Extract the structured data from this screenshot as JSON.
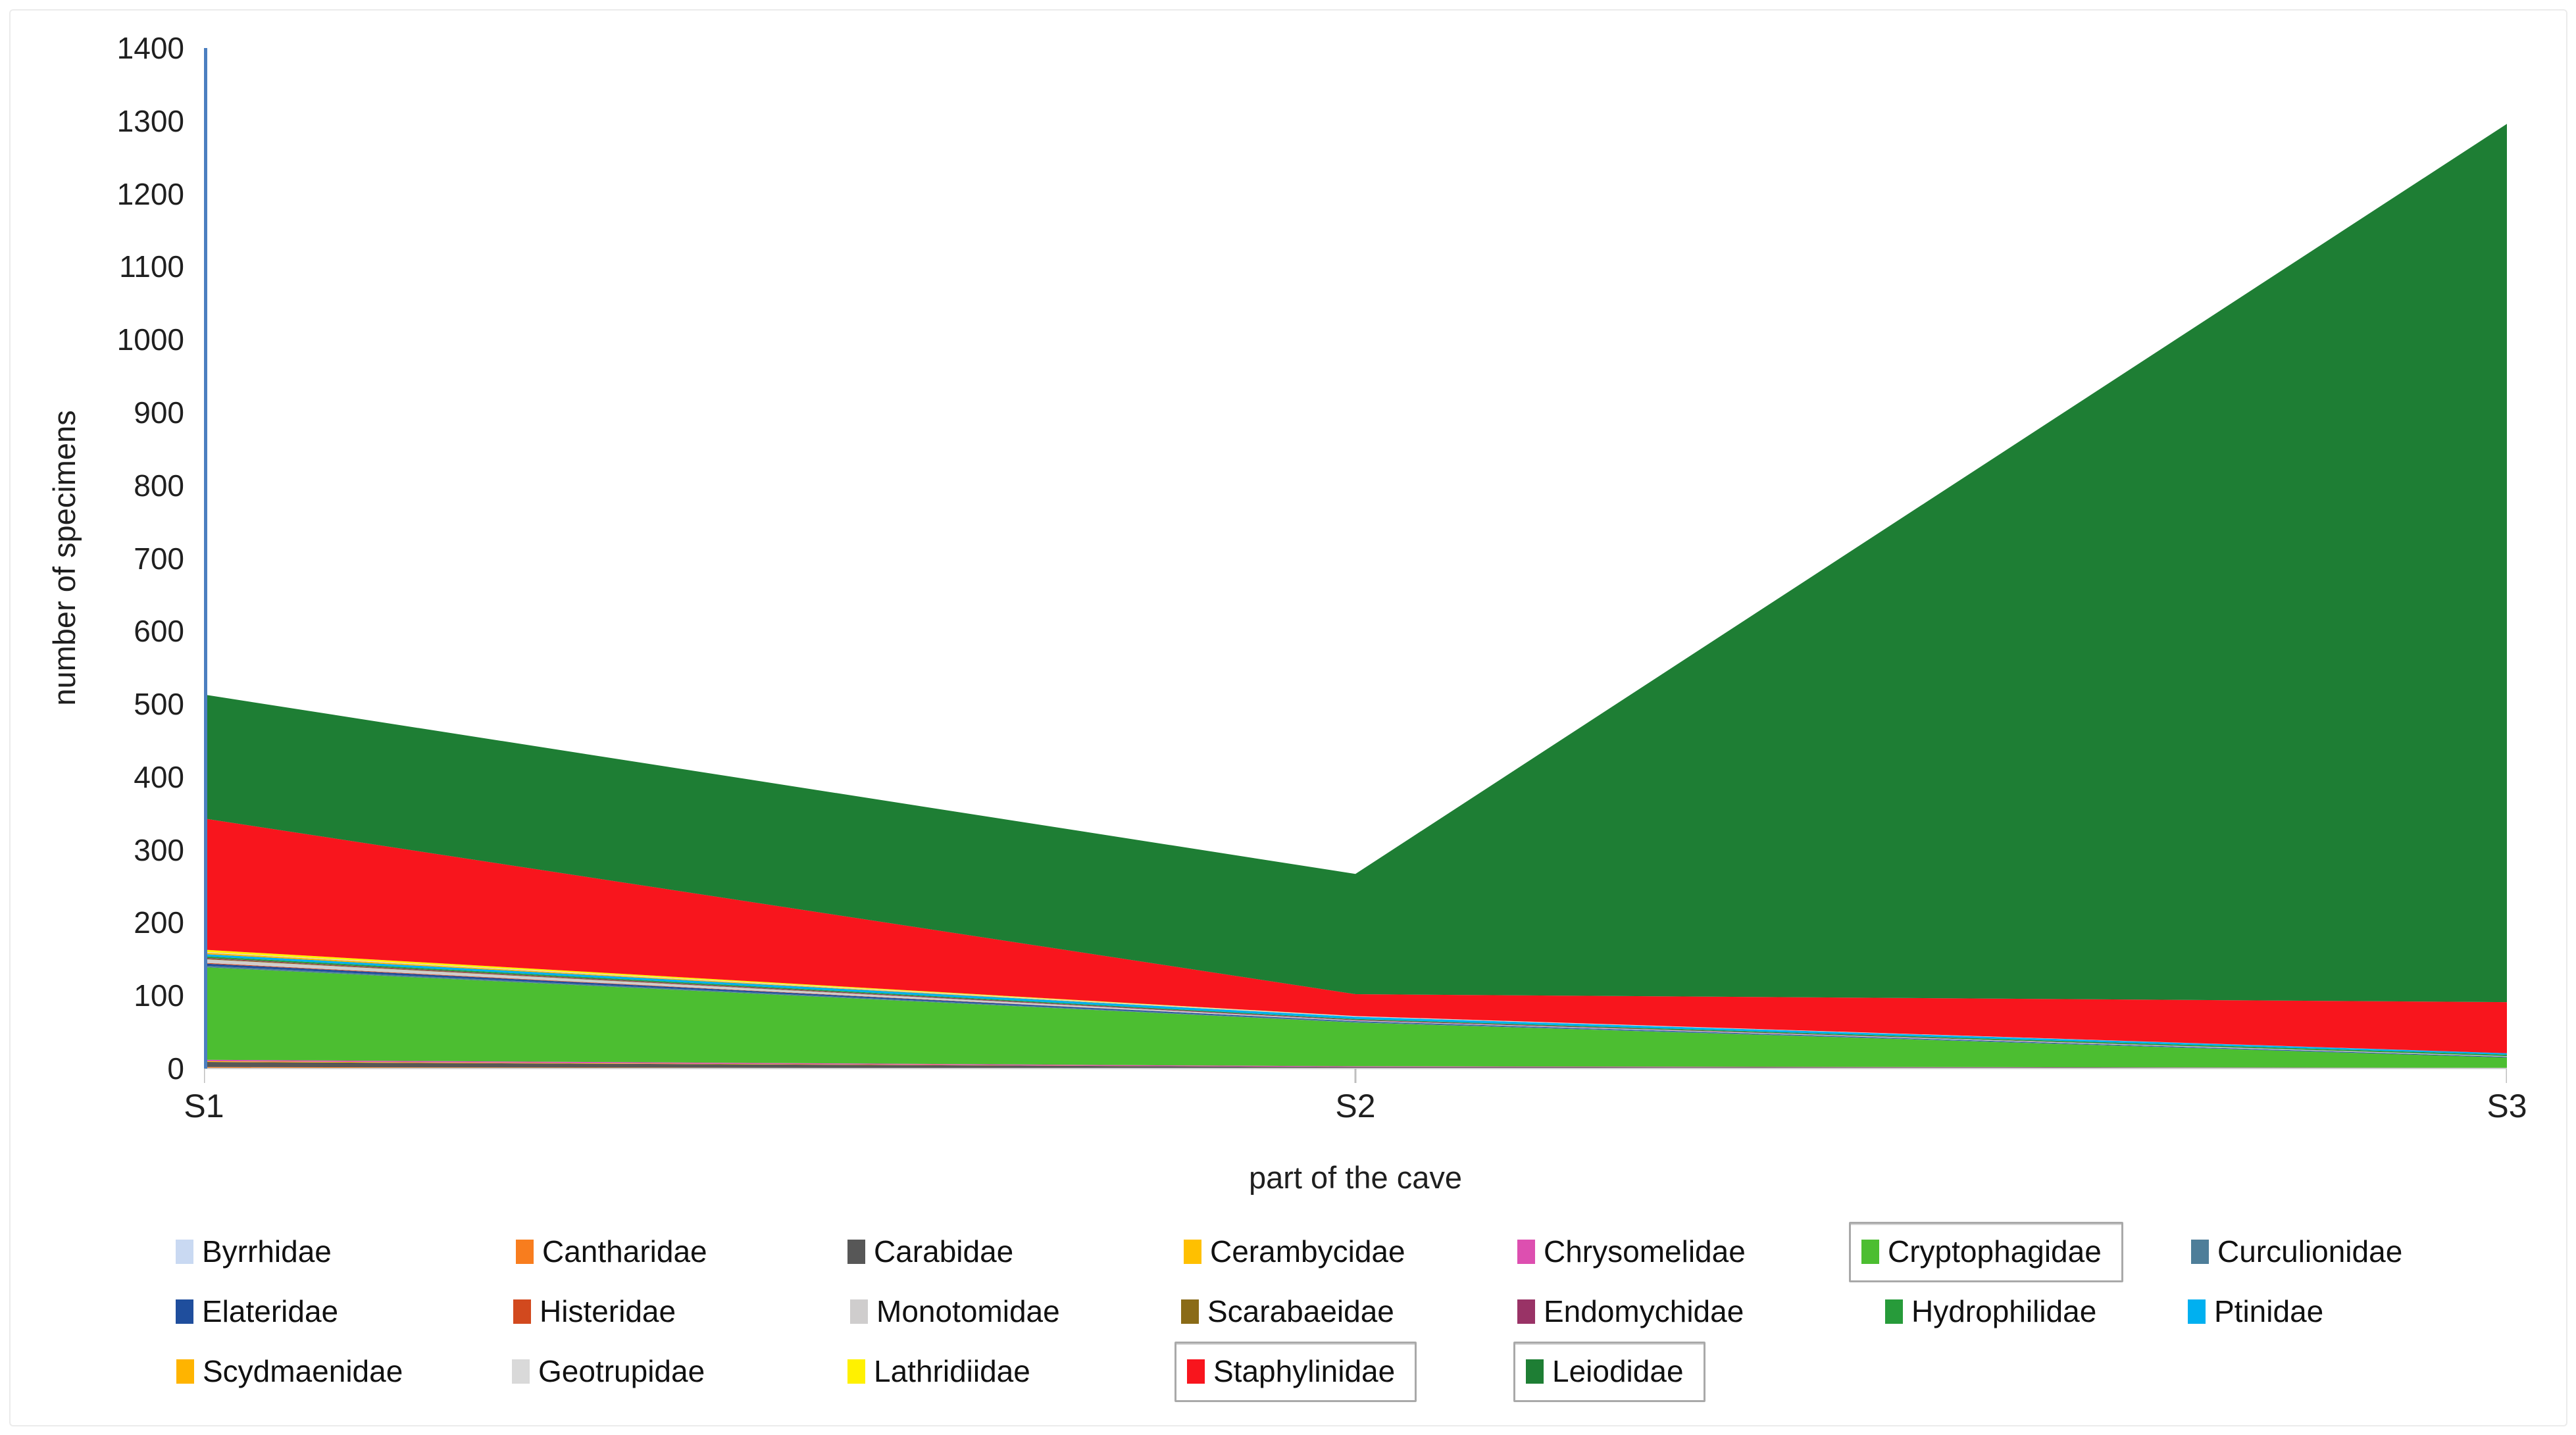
{
  "figure": {
    "background": "#ffffff",
    "border_color": "#ebebeb"
  },
  "chart_data": {
    "type": "area",
    "stacked": true,
    "title": "",
    "xlabel": "part of the cave",
    "ylabel": "number of specimens",
    "categories": [
      "S1",
      "S2",
      "S3"
    ],
    "xtick_labels": [
      "S1",
      "S2",
      "S3"
    ],
    "ylim": [
      0,
      1400
    ],
    "ytick_step": 100,
    "ytick_labels": [
      "0",
      "100",
      "200",
      "300",
      "400",
      "500",
      "600",
      "700",
      "800",
      "900",
      "1000",
      "1100",
      "1200",
      "1300",
      "1400"
    ],
    "grid": false,
    "legend_position": "bottom",
    "axis_color": "#4c7fc0",
    "x_axis_line_color": "#cfcfcf",
    "tick_mark_color": "#bfbfbf",
    "series": [
      {
        "name": "Byrrhidae",
        "color": "#c9d9f2",
        "values": [
          1,
          0,
          0
        ],
        "boxed": false
      },
      {
        "name": "Cantharidae",
        "color": "#f87d1e",
        "values": [
          1,
          0,
          0
        ],
        "boxed": false
      },
      {
        "name": "Carabidae",
        "color": "#575757",
        "values": [
          7,
          2,
          1
        ],
        "boxed": false
      },
      {
        "name": "Cerambycidae",
        "color": "#ffc000",
        "values": [
          1,
          0,
          0
        ],
        "boxed": false
      },
      {
        "name": "Chrysomelidae",
        "color": "#dd4fb0",
        "values": [
          2,
          1,
          0
        ],
        "boxed": false
      },
      {
        "name": "Cryptophagidae",
        "color": "#4cbe31",
        "values": [
          127,
          60,
          14
        ],
        "boxed": true
      },
      {
        "name": "Curculionidae",
        "color": "#4e7e99",
        "values": [
          2,
          1,
          0
        ],
        "boxed": false
      },
      {
        "name": "Elateridae",
        "color": "#1f4e9d",
        "values": [
          3,
          1,
          1
        ],
        "boxed": false
      },
      {
        "name": "Histeridae",
        "color": "#d2491e",
        "values": [
          1,
          0,
          0
        ],
        "boxed": false
      },
      {
        "name": "Monotomidae",
        "color": "#cfcdcd",
        "values": [
          5,
          1,
          1
        ],
        "boxed": false
      },
      {
        "name": "Scarabaeidae",
        "color": "#8a6b17",
        "values": [
          1,
          0,
          0
        ],
        "boxed": false
      },
      {
        "name": "Endomychidae",
        "color": "#993366",
        "values": [
          1,
          1,
          0
        ],
        "boxed": false
      },
      {
        "name": "Hydrophilidae",
        "color": "#279b3a",
        "values": [
          2,
          1,
          2
        ],
        "boxed": false
      },
      {
        "name": "Ptinidae",
        "color": "#00b0f0",
        "values": [
          3,
          3,
          2
        ],
        "boxed": false
      },
      {
        "name": "Scydmaenidae",
        "color": "#ffb400",
        "values": [
          2,
          0,
          0
        ],
        "boxed": false
      },
      {
        "name": "Geotrupidae",
        "color": "#d9d9d9",
        "values": [
          1,
          1,
          0
        ],
        "boxed": false
      },
      {
        "name": "Lathridiidae",
        "color": "#fff100",
        "values": [
          3,
          0,
          0
        ],
        "boxed": false
      },
      {
        "name": "Staphylinidae",
        "color": "#f8151d",
        "values": [
          180,
          30,
          70
        ],
        "boxed": true
      },
      {
        "name": "Leiodidae",
        "color": "#1e7e34",
        "values": [
          170,
          165,
          1205
        ],
        "boxed": true
      }
    ],
    "totals": [
      513,
      267,
      1296
    ],
    "legend_rows": [
      [
        "Byrrhidae",
        "Cantharidae",
        "Carabidae",
        "Cerambycidae",
        "Chrysomelidae",
        "Cryptophagidae",
        "Curculionidae"
      ],
      [
        "Elateridae",
        "Histeridae",
        "Monotomidae",
        "Scarabaeidae",
        "Endomychidae",
        "Hydrophilidae",
        "Ptinidae"
      ],
      [
        "Scydmaenidae",
        "Geotrupidae",
        "Lathridiidae",
        "Staphylinidae",
        "Leiodidae"
      ]
    ]
  }
}
